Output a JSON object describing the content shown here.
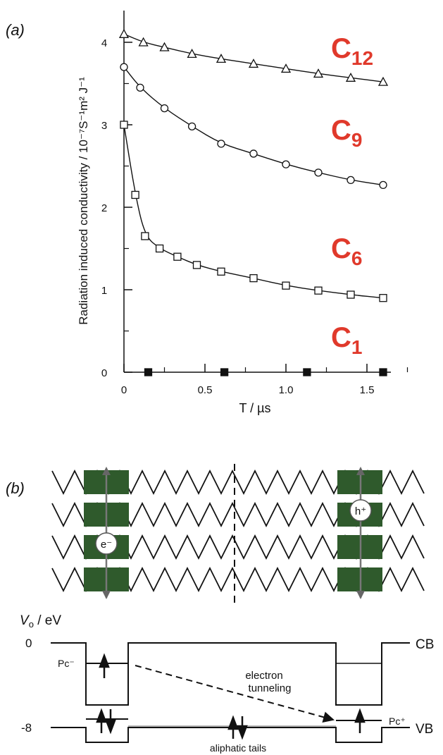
{
  "panel_a": {
    "label": "(a)",
    "chart_data": {
      "type": "scatter",
      "xlabel": "T / µs",
      "ylabel": "Radiation induced conductivity / 10⁻⁷S⁻¹m² J⁻¹",
      "xlim": [
        0,
        1.65
      ],
      "ylim": [
        0,
        4.2
      ],
      "x_ticks": [
        "0",
        "0.5",
        "1.0",
        "1.5"
      ],
      "y_ticks": [
        "0",
        "1",
        "2",
        "3",
        "4"
      ],
      "series": [
        {
          "name": "C12",
          "marker": "triangle",
          "x": [
            0,
            0.12,
            0.25,
            0.42,
            0.6,
            0.8,
            1.0,
            1.2,
            1.4,
            1.6
          ],
          "y": [
            4.1,
            4.0,
            3.94,
            3.86,
            3.8,
            3.74,
            3.68,
            3.62,
            3.57,
            3.52
          ]
        },
        {
          "name": "C9",
          "marker": "circle",
          "x": [
            0,
            0.1,
            0.25,
            0.42,
            0.6,
            0.8,
            1.0,
            1.2,
            1.4,
            1.6
          ],
          "y": [
            3.7,
            3.45,
            3.2,
            2.98,
            2.77,
            2.65,
            2.52,
            2.42,
            2.33,
            2.27
          ]
        },
        {
          "name": "C6",
          "marker": "square",
          "x": [
            0,
            0.07,
            0.13,
            0.22,
            0.33,
            0.45,
            0.6,
            0.8,
            1.0,
            1.2,
            1.4,
            1.6
          ],
          "y": [
            3.0,
            2.15,
            1.65,
            1.5,
            1.4,
            1.3,
            1.22,
            1.14,
            1.05,
            0.99,
            0.94,
            0.9
          ]
        },
        {
          "name": "C1",
          "marker": "filled-square",
          "x": [
            0.15,
            0.62,
            1.13,
            1.6
          ],
          "y": [
            0,
            0,
            0,
            0
          ]
        }
      ],
      "series_labels": [
        {
          "base": "C",
          "sub": "12"
        },
        {
          "base": "C",
          "sub": "9"
        },
        {
          "base": "C",
          "sub": "6"
        },
        {
          "base": "C",
          "sub": "1"
        }
      ],
      "label_color": "#e0392b"
    }
  },
  "panel_b": {
    "label": "(b)",
    "electron_label": "e⁻",
    "hole_label": "h⁺",
    "core_color": "#2f5a2c",
    "energy": {
      "axis_label": "Vo / eV",
      "tick_0": "0",
      "tick_8": "-8",
      "cb": "CB",
      "vb": "VB",
      "pc_minus": "Pc⁻",
      "pc_plus": "Pc⁺",
      "tunneling_1": "electron",
      "tunneling_2": "tunneling",
      "aliphatic": "aliphatic tails"
    }
  }
}
